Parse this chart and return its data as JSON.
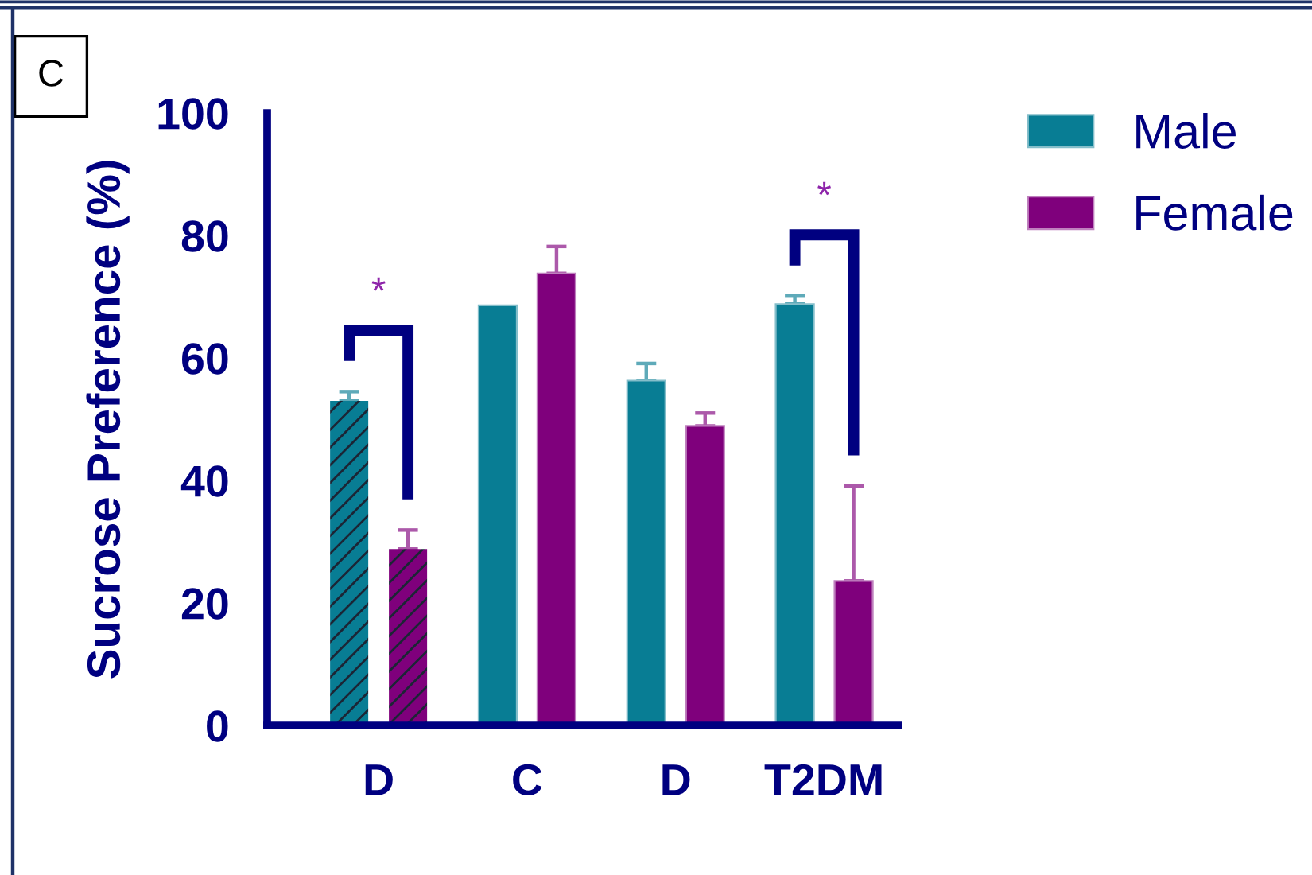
{
  "chart_data": {
    "type": "bar",
    "title": "C",
    "ylabel": "Sucrose Preference (%)",
    "categories": [
      "D",
      "C",
      "D",
      "T2DM"
    ],
    "series": [
      {
        "name": "Male",
        "color": "#087d94",
        "values": [
          53,
          68.6,
          56.3,
          68.8
        ],
        "errors": [
          [
            53,
            54.5
          ],
          null,
          [
            56.3,
            59.1
          ],
          [
            68.8,
            70.1
          ]
        ]
      },
      {
        "name": "Female",
        "color": "#7f007c",
        "values": [
          28.8,
          73.8,
          48.9,
          23.6
        ],
        "errors": [
          [
            28.8,
            31.9
          ],
          [
            73.8,
            78.2
          ],
          [
            48.9,
            51
          ],
          [
            23.6,
            39.1
          ]
        ]
      }
    ],
    "ylim": [
      0,
      100
    ],
    "yticks": [
      0,
      20,
      40,
      60,
      80,
      100
    ],
    "grid": false,
    "legend": "top right",
    "annotations": [
      "*",
      "*"
    ]
  }
}
